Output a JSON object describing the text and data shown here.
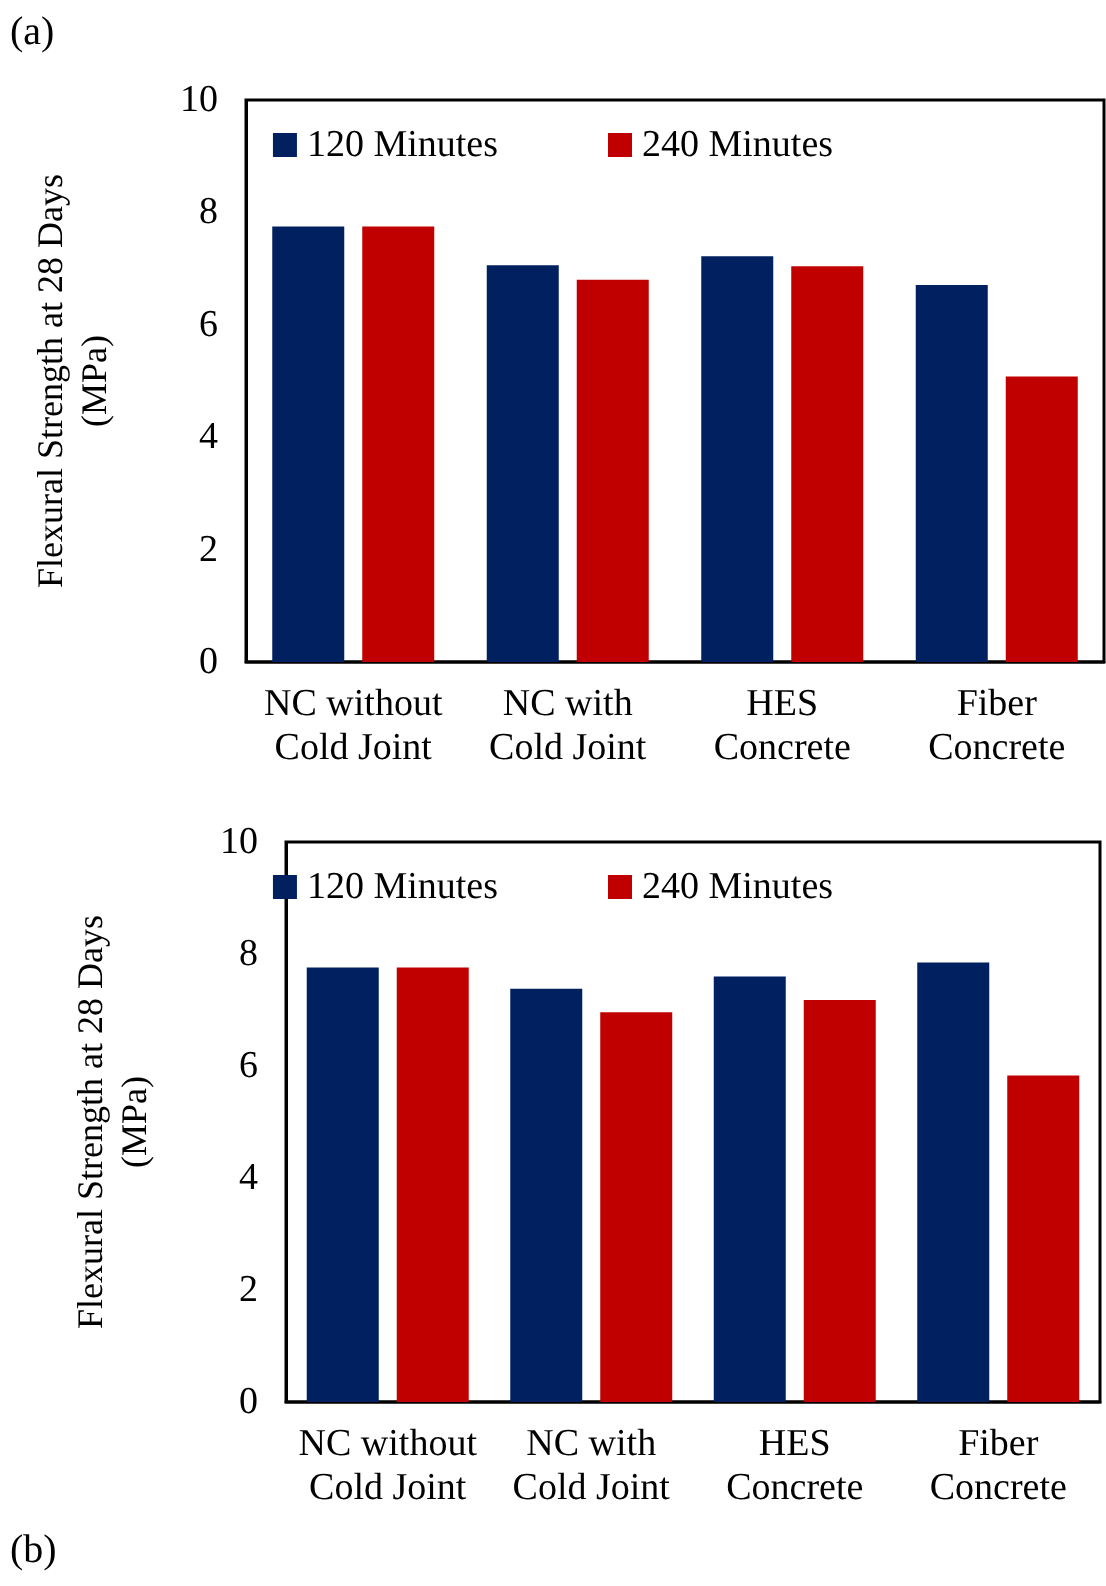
{
  "chart_data": [
    {
      "type": "bar",
      "annotations": [
        "(a)"
      ],
      "ylabel": "Flexural Strength at 28 Days\n(MPa)",
      "categories": [
        "NC without\nCold Joint",
        "NC with\nCold Joint",
        "HES\nConcrete",
        "Fiber\nConcrete"
      ],
      "series": [
        {
          "name": "120 Minutes",
          "color": "#002060",
          "values": [
            7.75,
            7.06,
            7.22,
            6.71
          ]
        },
        {
          "name": "240 Minutes",
          "color": "#c00000",
          "values": [
            7.75,
            6.8,
            7.04,
            5.08
          ]
        }
      ],
      "ylim": [
        0,
        10
      ],
      "yticks": [
        0,
        2,
        4,
        6,
        8,
        10
      ],
      "grid": false,
      "legend": "top"
    },
    {
      "type": "bar",
      "annotations": [
        "(b)"
      ],
      "ylabel": "Flexural Strength at 28 Days\n(MPa)",
      "categories": [
        "NC without\nCold Joint",
        "NC with\nCold Joint",
        "HES\nConcrete",
        "Fiber\nConcrete"
      ],
      "series": [
        {
          "name": "120 Minutes",
          "color": "#002060",
          "values": [
            7.76,
            7.38,
            7.6,
            7.85
          ]
        },
        {
          "name": "240 Minutes",
          "color": "#c00000",
          "values": [
            7.76,
            6.96,
            7.18,
            5.83
          ]
        }
      ],
      "ylim": [
        0,
        10
      ],
      "yticks": [
        0,
        2,
        4,
        6,
        8,
        10
      ],
      "grid": false,
      "legend": "top"
    }
  ]
}
